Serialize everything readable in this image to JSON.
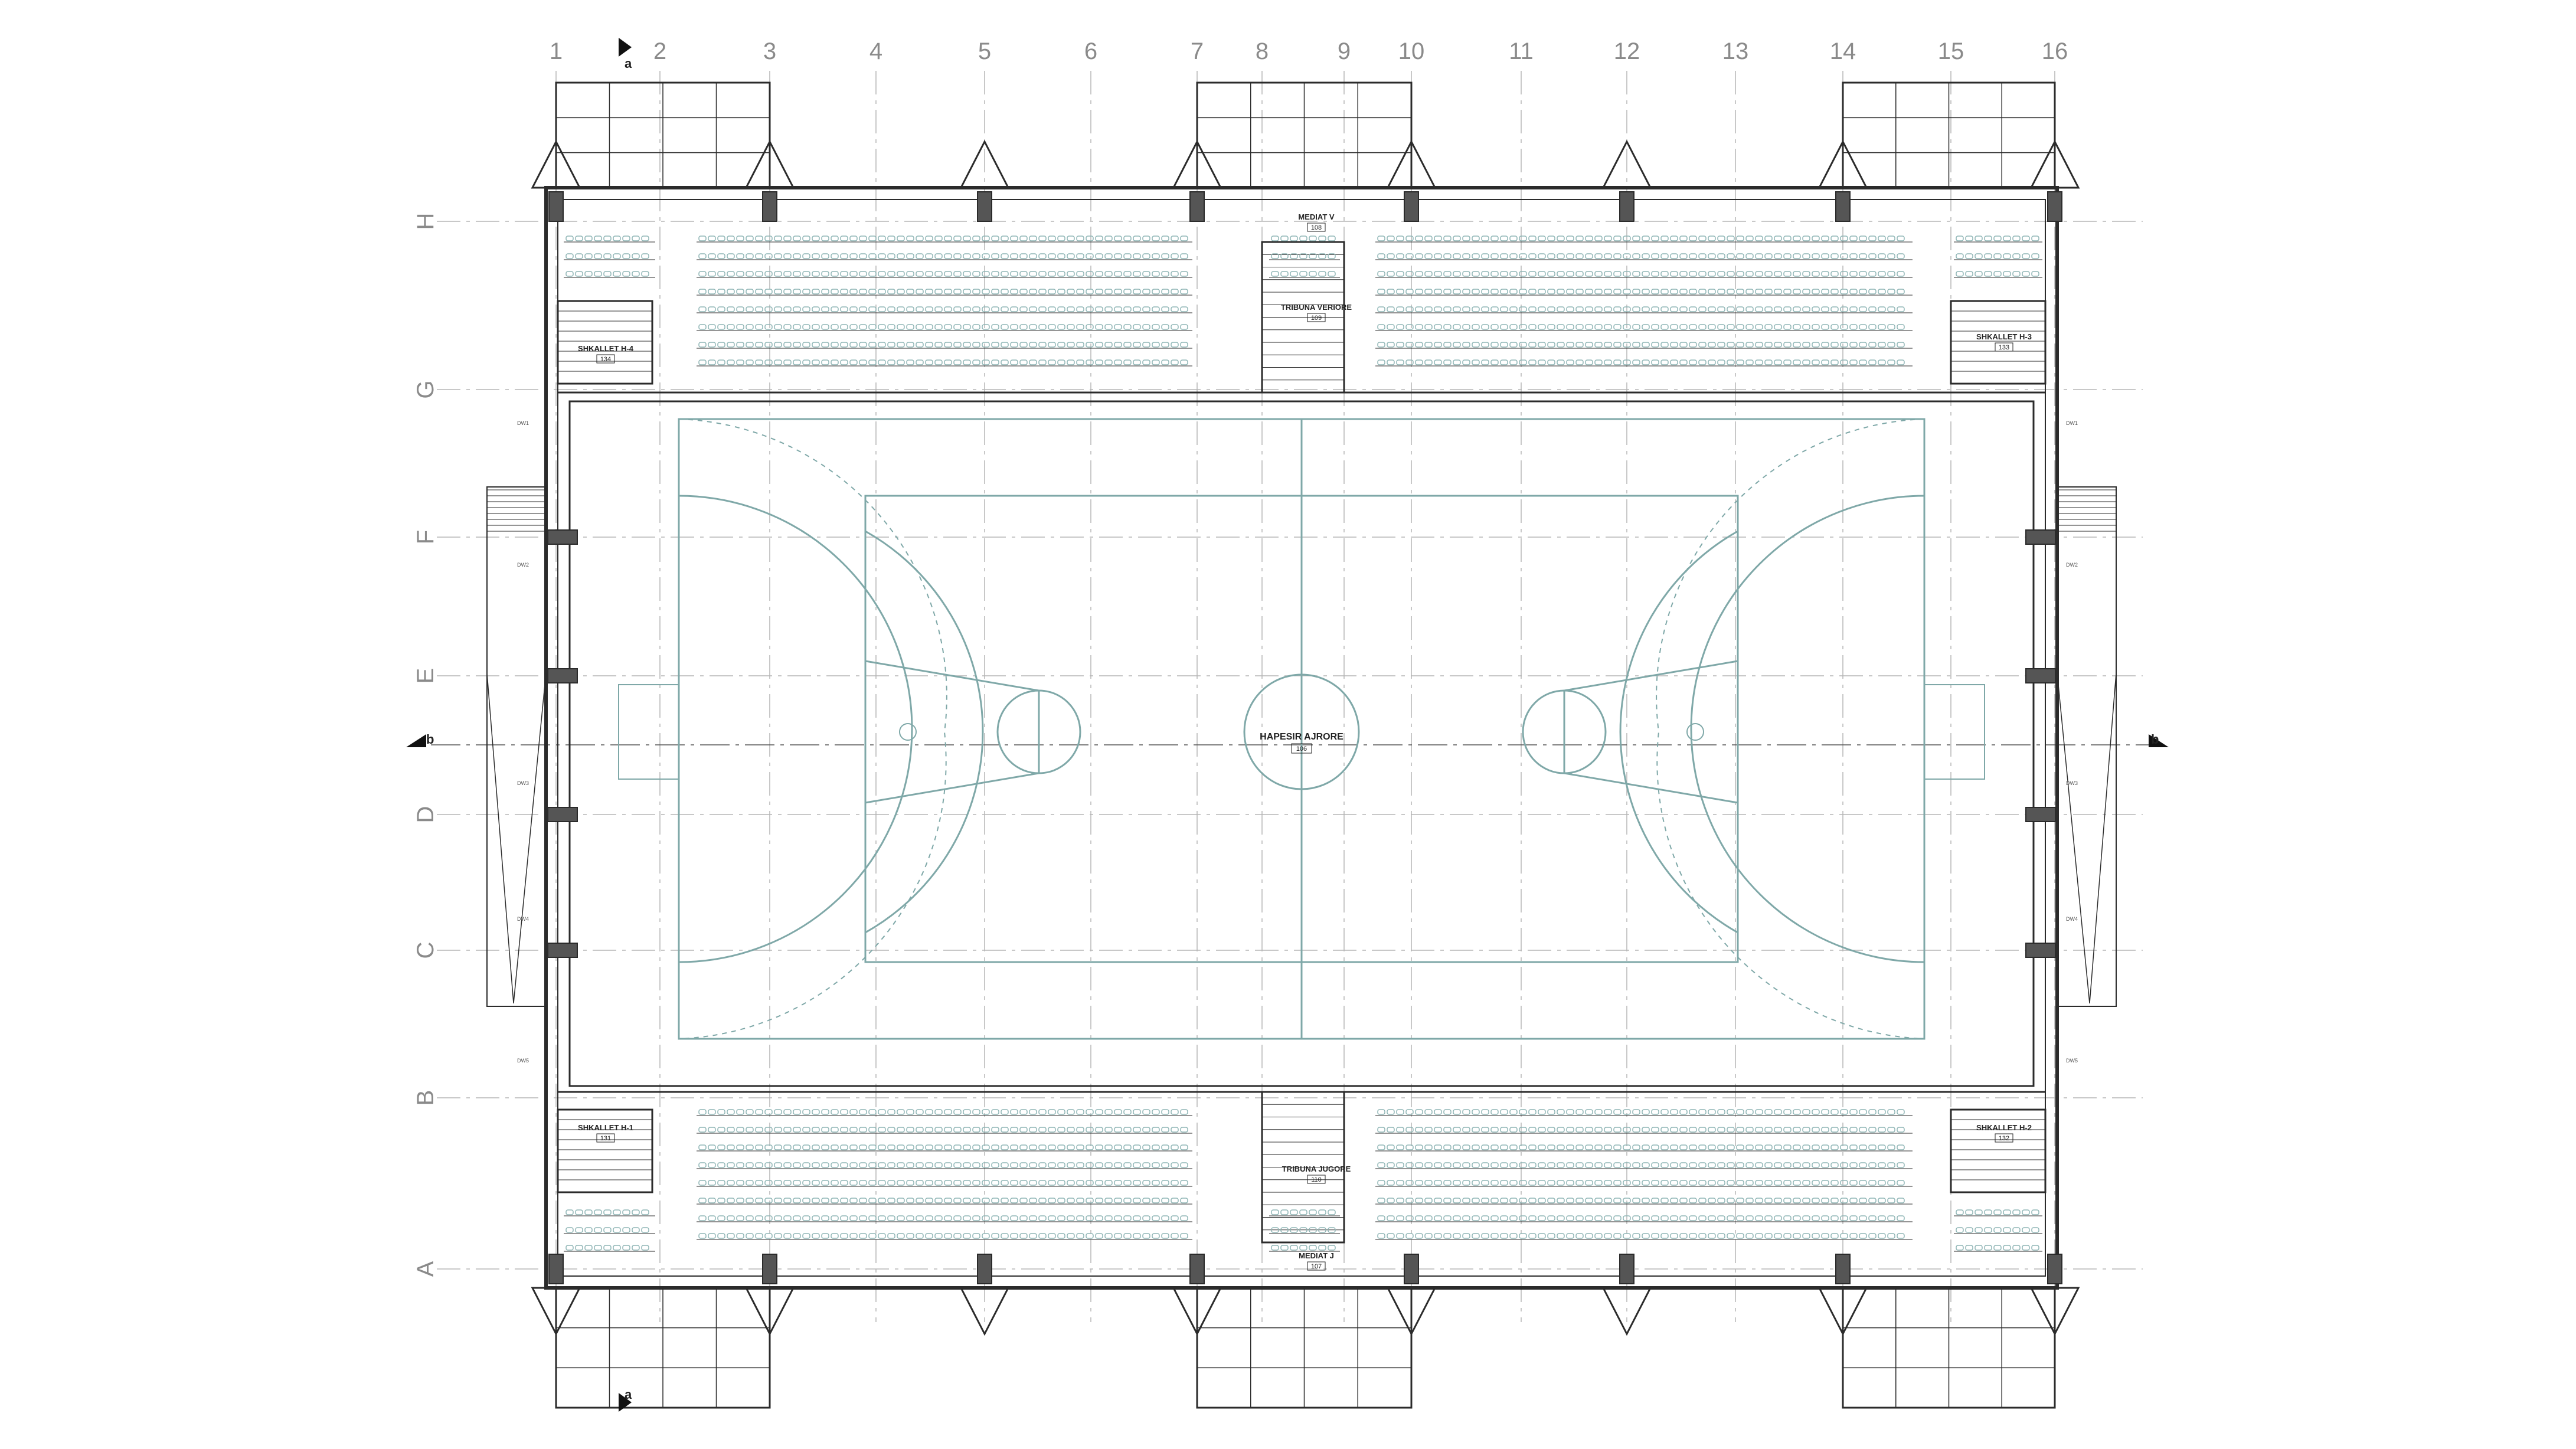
{
  "grid_columns": [
    "1",
    "2",
    "3",
    "4",
    "5",
    "6",
    "7",
    "8",
    "9",
    "10",
    "11",
    "12",
    "13",
    "14",
    "15",
    "16"
  ],
  "grid_rows": [
    "H",
    "G",
    "F",
    "E",
    "D",
    "C",
    "B",
    "A"
  ],
  "section_marks": {
    "a": "a",
    "b": "b"
  },
  "main_space": {
    "name": "HAPESIR AJRORE",
    "number": "106"
  },
  "rooms": {
    "hall_top": {
      "name": "MEDIAT V",
      "number": "108"
    },
    "hall_bottom": {
      "name": "MEDIAT J",
      "number": "107"
    },
    "tribune_north": {
      "name": "TRIBUNA VERIORE",
      "number": "109"
    },
    "tribune_south": {
      "name": "TRIBUNA JUGORE",
      "number": "110"
    },
    "stair_nw": {
      "name": "SHKALLET H-4",
      "number": "134"
    },
    "stair_ne": {
      "name": "SHKALLET H-3",
      "number": "133"
    },
    "stair_sw": {
      "name": "SHKALLET H-1",
      "number": "131"
    },
    "stair_se": {
      "name": "SHKALLET H-2",
      "number": "132"
    }
  },
  "window_tags": [
    "DW1",
    "DW2",
    "DW3",
    "DW4",
    "DW5"
  ],
  "colors": {
    "line": "#2b2b2b",
    "court": "#7fa8a8",
    "seat": "#8fb5b5",
    "grid": "#b5b5b5"
  }
}
